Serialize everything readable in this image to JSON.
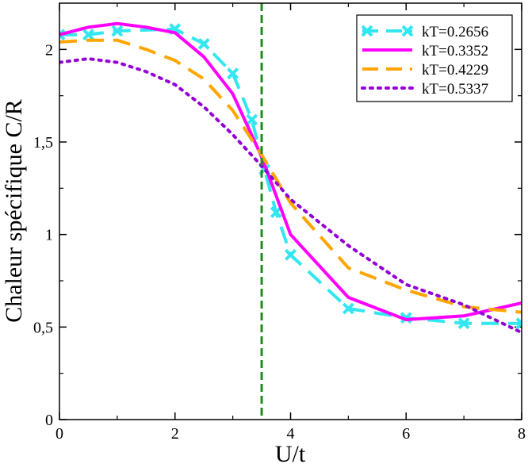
{
  "chart_data": {
    "type": "line",
    "title": "",
    "xlabel": "U/t",
    "ylabel": "Chaleur spécifique C/R",
    "xlim": [
      0,
      8
    ],
    "ylim": [
      0,
      2.25
    ],
    "xticks": [
      0,
      2,
      4,
      6,
      8
    ],
    "xtick_labels": [
      "0",
      "2",
      "4",
      "6",
      "8"
    ],
    "yticks": [
      0,
      0.5,
      1,
      1.5,
      2
    ],
    "ytick_labels": [
      "0",
      "0,5",
      "1",
      "1,5",
      "2"
    ],
    "grid": false,
    "legend_position": "top-right",
    "vertical_line": {
      "x": 3.5,
      "color": "#1e8b1e",
      "style": "dashed"
    },
    "series": [
      {
        "name": "kT=0.2656",
        "color": "#33e6f0",
        "style": "dashed",
        "marker": "x",
        "x": [
          0,
          0.5,
          1,
          2,
          2.5,
          3,
          3.33,
          3.55,
          3.75,
          4,
          5,
          6,
          7,
          8
        ],
        "y": [
          2.08,
          2.08,
          2.1,
          2.11,
          2.03,
          1.87,
          1.62,
          1.35,
          1.12,
          0.89,
          0.6,
          0.55,
          0.52,
          0.52
        ]
      },
      {
        "name": "kT=0.3352",
        "color": "#ff00ff",
        "style": "solid",
        "marker": "none",
        "x": [
          0,
          0.5,
          1,
          1.5,
          2,
          2.5,
          3,
          3.5,
          4,
          5,
          6,
          7,
          8
        ],
        "y": [
          2.08,
          2.12,
          2.14,
          2.12,
          2.09,
          1.96,
          1.76,
          1.42,
          1.0,
          0.66,
          0.54,
          0.56,
          0.63
        ]
      },
      {
        "name": "kT=0.4229",
        "color": "#ffa500",
        "style": "dashed",
        "marker": "none",
        "x": [
          0,
          0.5,
          1,
          1.5,
          2,
          2.5,
          3,
          3.5,
          4,
          5,
          6,
          7,
          8
        ],
        "y": [
          2.04,
          2.05,
          2.05,
          2.0,
          1.94,
          1.84,
          1.67,
          1.43,
          1.17,
          0.82,
          0.7,
          0.61,
          0.58
        ]
      },
      {
        "name": "kT=0.5337",
        "color": "#9400d3",
        "style": "dotted",
        "marker": "none",
        "x": [
          0,
          0.5,
          1,
          1.5,
          2,
          2.5,
          3,
          3.5,
          4,
          5,
          6,
          7,
          8
        ],
        "y": [
          1.93,
          1.95,
          1.93,
          1.88,
          1.81,
          1.69,
          1.54,
          1.37,
          1.19,
          0.94,
          0.73,
          0.62,
          0.47
        ]
      }
    ]
  }
}
